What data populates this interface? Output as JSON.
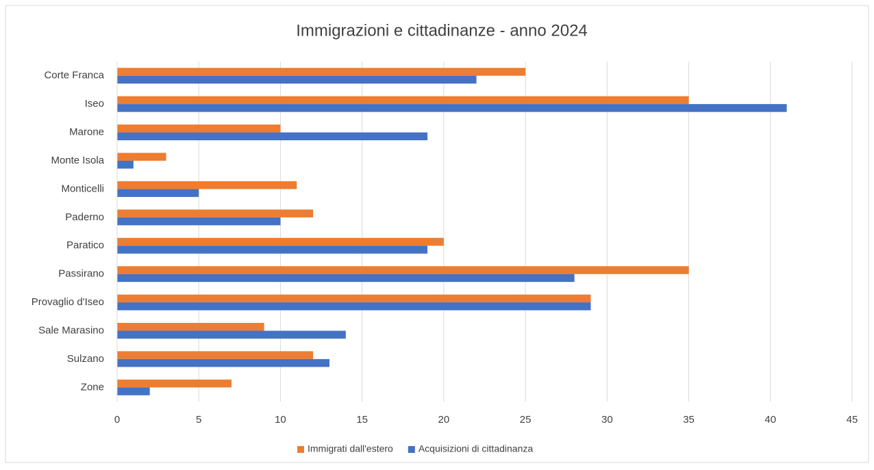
{
  "chart_data": {
    "type": "bar",
    "orientation": "horizontal",
    "title": "Immigrazioni e cittadinanze - anno 2024",
    "categories": [
      "Corte Franca",
      "Iseo",
      "Marone",
      "Monte Isola",
      "Monticelli",
      "Paderno",
      "Paratico",
      "Passirano",
      "Provaglio d'Iseo",
      "Sale Marasino",
      "Sulzano",
      "Zone"
    ],
    "series": [
      {
        "name": "Immigrati dall'estero",
        "color": "#ed7d31",
        "values": [
          25,
          35,
          10,
          3,
          11,
          12,
          20,
          35,
          29,
          9,
          12,
          7
        ]
      },
      {
        "name": "Acquisizioni di cittadinanza",
        "color": "#4472c4",
        "values": [
          22,
          41,
          19,
          1,
          5,
          10,
          19,
          28,
          29,
          14,
          13,
          2
        ]
      }
    ],
    "xlim": [
      0,
      45
    ],
    "xticks": [
      0,
      5,
      10,
      15,
      20,
      25,
      30,
      35,
      40,
      45
    ],
    "grid": true,
    "legend": "bottom"
  }
}
